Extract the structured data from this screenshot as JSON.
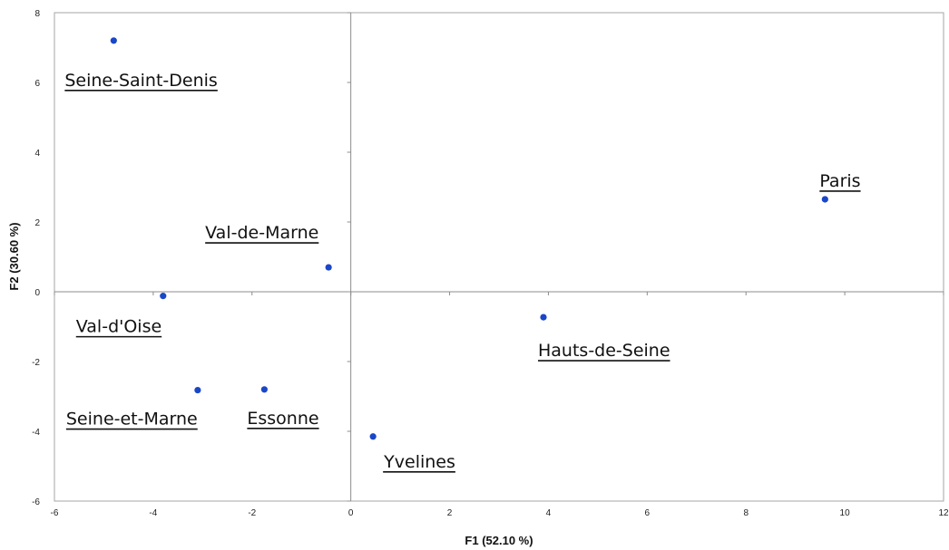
{
  "chart_data": {
    "type": "scatter",
    "title": "",
    "xlabel": "F1 (52.10 %)",
    "ylabel": "F2 (30.60 %)",
    "xlim": [
      -6,
      12
    ],
    "ylim": [
      -6,
      8
    ],
    "xticks": [
      -6,
      -4,
      -2,
      0,
      2,
      4,
      6,
      8,
      10,
      12
    ],
    "yticks": [
      -6,
      -4,
      -2,
      0,
      2,
      4,
      6,
      8
    ],
    "grid": false,
    "legend": "none",
    "point_color": "#1a47c8",
    "points": [
      {
        "label": "Seine-Saint-Denis",
        "x": -4.8,
        "y": 7.2
      },
      {
        "label": "Paris",
        "x": 9.6,
        "y": 2.65
      },
      {
        "label": "Val-de-Marne",
        "x": -0.45,
        "y": 0.7
      },
      {
        "label": "Val-d'Oise",
        "x": -3.8,
        "y": -0.12
      },
      {
        "label": "Hauts-de-Seine",
        "x": 3.9,
        "y": -0.73
      },
      {
        "label": "Seine-et-Marne",
        "x": -3.1,
        "y": -2.82
      },
      {
        "label": "Essonne",
        "x": -1.75,
        "y": -2.8
      },
      {
        "label": "Yvelines",
        "x": 0.45,
        "y": -4.15
      }
    ]
  }
}
